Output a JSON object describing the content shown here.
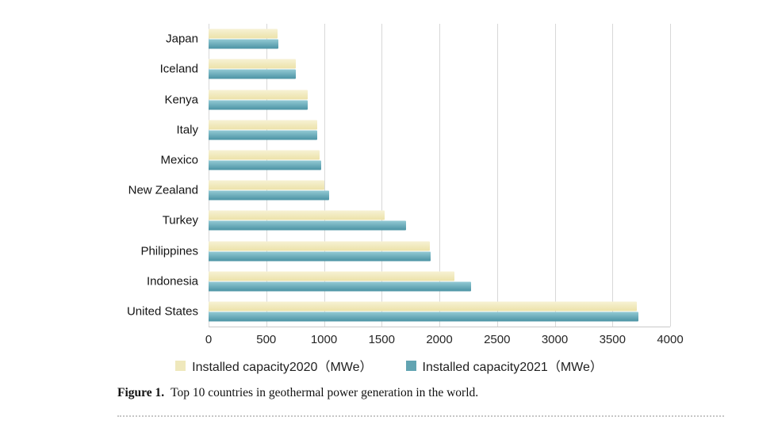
{
  "chart_data": {
    "type": "bar",
    "orientation": "horizontal",
    "title": "",
    "xlabel": "",
    "ylabel": "",
    "categories": [
      "Japan",
      "Iceland",
      "Kenya",
      "Italy",
      "Mexico",
      "New Zealand",
      "Turkey",
      "Philippines",
      "Indonesia",
      "United States"
    ],
    "series": [
      {
        "name": "Installed capacity2020（MWe）",
        "swatch_color": "#efe8bc",
        "gradient_top": "#f7f2d4",
        "gradient_bottom": "#ece2a9",
        "values": [
          600,
          755,
          860,
          944,
          962,
          1005,
          1526,
          1918,
          2131,
          3714
        ]
      },
      {
        "name": "Installed capacity2021（MWe）",
        "swatch_color": "#62a4b2",
        "gradient_top": "#93cad4",
        "gradient_bottom": "#4b93a4",
        "values": [
          603,
          755,
          861,
          944,
          976,
          1042,
          1710,
          1925,
          2277,
          3722
        ]
      }
    ],
    "xlim": [
      0,
      4000
    ],
    "xticks": [
      0,
      500,
      1000,
      1500,
      2000,
      2500,
      3000,
      3500,
      4000
    ],
    "grid": "vertical",
    "legend_position": "bottom"
  },
  "caption": {
    "label": "Figure 1.",
    "text": "Top 10 countries in geothermal power generation in the world."
  }
}
